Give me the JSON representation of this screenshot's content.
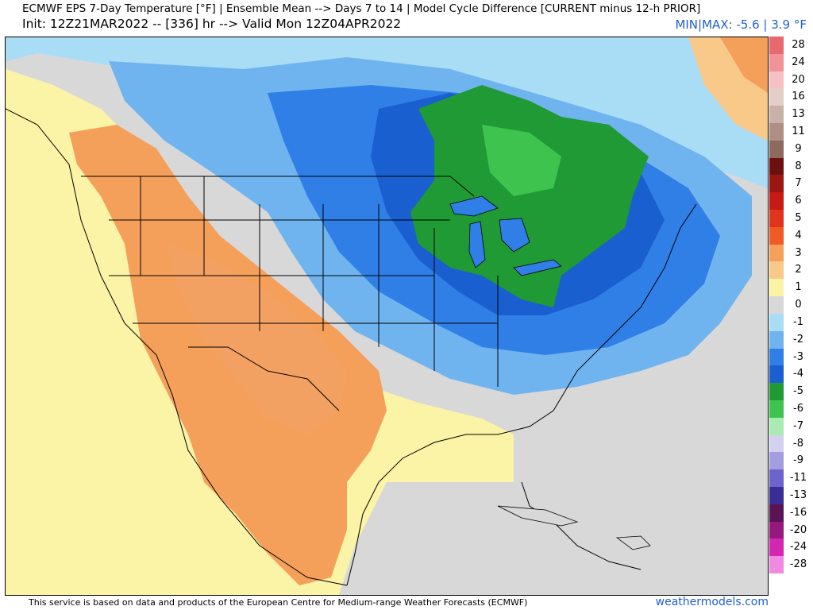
{
  "header": {
    "title_line1": "ECMWF EPS 7-Day Temperature [°F] | Ensemble Mean --> Days 7 to 14 | Model Cycle Difference [CURRENT minus 12-h PRIOR]",
    "title_line2": "Init: 12Z21MAR2022 -- [336] hr --> Valid Mon 12Z04APR2022",
    "minmax": "MIN|MAX: -5.6 | 3.9 °F"
  },
  "legend": {
    "items": [
      {
        "label": "28",
        "color": "#e8686f"
      },
      {
        "label": "24",
        "color": "#f09298"
      },
      {
        "label": "20",
        "color": "#f6c0c4"
      },
      {
        "label": "16",
        "color": "#e3cfc7"
      },
      {
        "label": "13",
        "color": "#c8b1a8"
      },
      {
        "label": "11",
        "color": "#ad8f84"
      },
      {
        "label": "9",
        "color": "#8d6a5e"
      },
      {
        "label": "8",
        "color": "#6b0f0f"
      },
      {
        "label": "7",
        "color": "#9b1512"
      },
      {
        "label": "6",
        "color": "#c61a12"
      },
      {
        "label": "5",
        "color": "#e0351c"
      },
      {
        "label": "4",
        "color": "#ef5a25"
      },
      {
        "label": "3",
        "color": "#f5a05a"
      },
      {
        "label": "2",
        "color": "#f9c98a"
      },
      {
        "label": "1",
        "color": "#fbf3a6"
      },
      {
        "label": "0",
        "color": "#d8d8d8"
      },
      {
        "label": "-1",
        "color": "#a9dcf5"
      },
      {
        "label": "-2",
        "color": "#6fb4ef"
      },
      {
        "label": "-3",
        "color": "#2f7fe6"
      },
      {
        "label": "-4",
        "color": "#1a5fd0"
      },
      {
        "label": "-5",
        "color": "#1f9a35"
      },
      {
        "label": "-6",
        "color": "#3ec34f"
      },
      {
        "label": "-7",
        "color": "#a9ebb2"
      },
      {
        "label": "-8",
        "color": "#d4d0ef"
      },
      {
        "label": "-9",
        "color": "#a39ee0"
      },
      {
        "label": "-11",
        "color": "#6c64cc"
      },
      {
        "label": "-13",
        "color": "#3a2e96"
      },
      {
        "label": "-16",
        "color": "#5a1355"
      },
      {
        "label": "-20",
        "color": "#96187f"
      },
      {
        "label": "-24",
        "color": "#d526b2"
      },
      {
        "label": "-28",
        "color": "#f08ae0"
      }
    ]
  },
  "footer": {
    "credit": "This service is based on data and products of the European Centre for Medium-range Weather Forecasts (ECMWF)",
    "brand": "weathermodels.com"
  }
}
